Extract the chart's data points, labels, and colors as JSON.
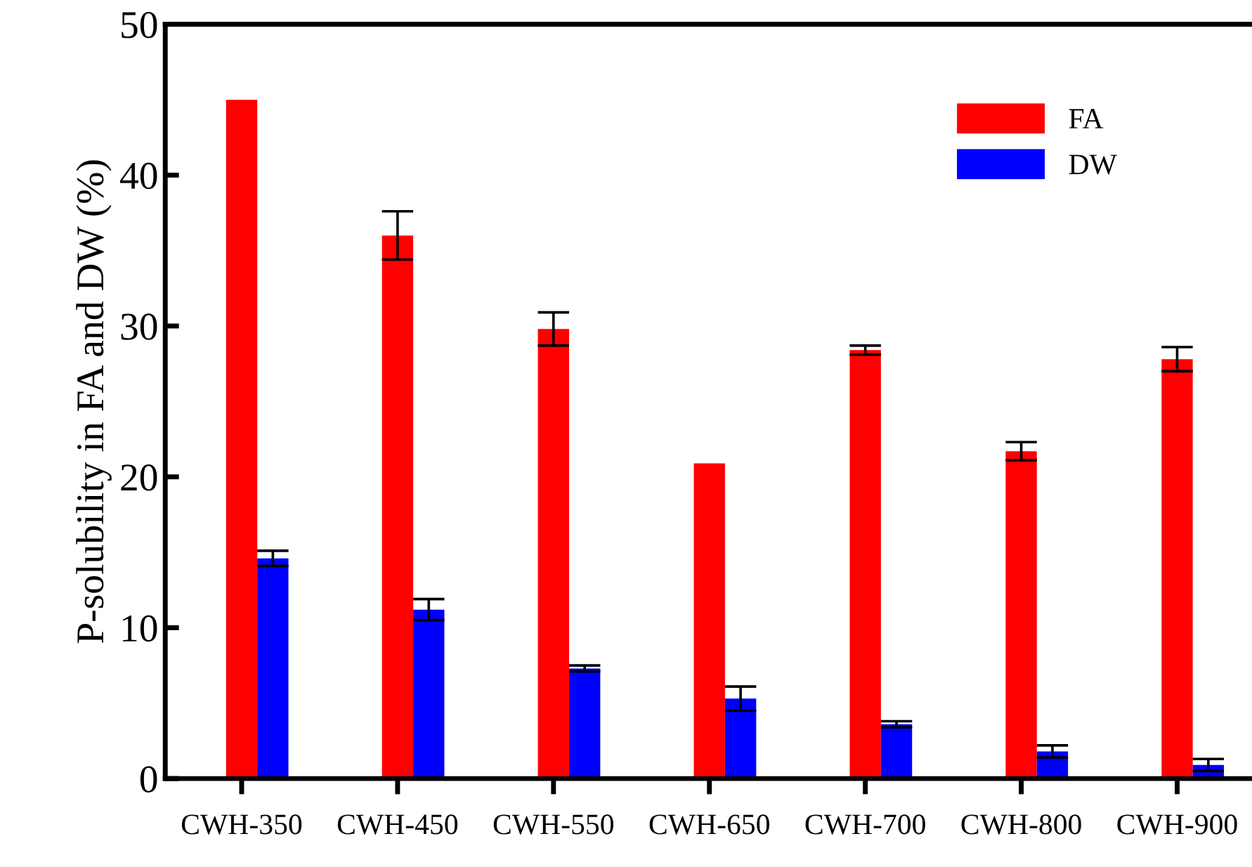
{
  "chart_data": {
    "type": "bar",
    "ylabel": "P-solubility in FA and DW (%)",
    "categories": [
      "CWH-350",
      "CWH-450",
      "CWH-550",
      "CWH-650",
      "CWH-700",
      "CWH-800",
      "CWH-900"
    ],
    "series": [
      {
        "name": "FA",
        "color": "#ff0000",
        "values": [
          45.0,
          36.0,
          29.8,
          20.9,
          28.4,
          21.7,
          27.8
        ],
        "errors": [
          null,
          1.6,
          1.1,
          null,
          0.3,
          0.6,
          0.8
        ]
      },
      {
        "name": "DW",
        "color": "#0000ff",
        "values": [
          14.6,
          11.2,
          7.3,
          5.3,
          3.6,
          1.8,
          0.9
        ],
        "errors": [
          0.5,
          0.7,
          0.2,
          0.8,
          0.2,
          0.4,
          0.4
        ]
      }
    ],
    "ylim": [
      0,
      50
    ],
    "yticks": [
      0,
      10,
      20,
      30,
      40,
      50
    ],
    "grid": false,
    "legend": "top right"
  }
}
